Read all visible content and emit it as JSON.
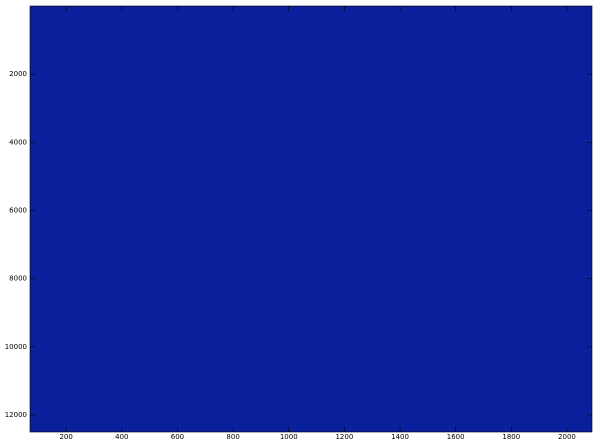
{
  "chart_data": {
    "type": "heatmap",
    "background": "#0a1f9b",
    "xlim": [
      70,
      2090
    ],
    "xticks": [
      200,
      400,
      600,
      800,
      1000,
      1200,
      1400,
      1600,
      1800,
      2000
    ],
    "ylim": [
      0,
      12500
    ],
    "y_reversed": true,
    "yticks": [
      2000,
      4000,
      6000,
      8000,
      10000,
      12000
    ]
  }
}
